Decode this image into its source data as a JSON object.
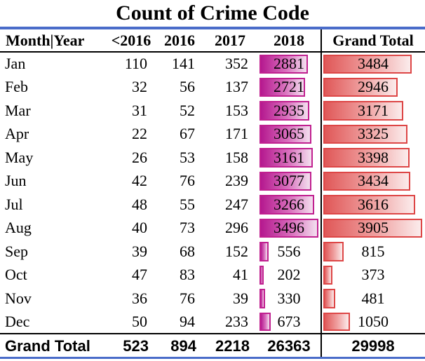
{
  "title": "Count of Crime Code",
  "columns": [
    "Month|Year",
    "<2016",
    "2016",
    "2017",
    "2018",
    "Grand Total"
  ],
  "rows": [
    {
      "month": "Jan",
      "lt2016": "110",
      "y2016": "141",
      "y2017": "352",
      "y2018": "2881",
      "total": "3484"
    },
    {
      "month": "Feb",
      "lt2016": "32",
      "y2016": "56",
      "y2017": "137",
      "y2018": "2721",
      "total": "2946"
    },
    {
      "month": "Mar",
      "lt2016": "31",
      "y2016": "52",
      "y2017": "153",
      "y2018": "2935",
      "total": "3171"
    },
    {
      "month": "Apr",
      "lt2016": "22",
      "y2016": "67",
      "y2017": "171",
      "y2018": "3065",
      "total": "3325"
    },
    {
      "month": "May",
      "lt2016": "26",
      "y2016": "53",
      "y2017": "158",
      "y2018": "3161",
      "total": "3398"
    },
    {
      "month": "Jun",
      "lt2016": "42",
      "y2016": "76",
      "y2017": "239",
      "y2018": "3077",
      "total": "3434"
    },
    {
      "month": "Jul",
      "lt2016": "48",
      "y2016": "55",
      "y2017": "247",
      "y2018": "3266",
      "total": "3616"
    },
    {
      "month": "Aug",
      "lt2016": "40",
      "y2016": "73",
      "y2017": "296",
      "y2018": "3496",
      "total": "3905"
    },
    {
      "month": "Sep",
      "lt2016": "39",
      "y2016": "68",
      "y2017": "152",
      "y2018": "556",
      "total": "815"
    },
    {
      "month": "Oct",
      "lt2016": "47",
      "y2016": "83",
      "y2017": "41",
      "y2018": "202",
      "total": "373"
    },
    {
      "month": "Nov",
      "lt2016": "36",
      "y2016": "76",
      "y2017": "39",
      "y2018": "330",
      "total": "481"
    },
    {
      "month": "Dec",
      "lt2016": "50",
      "y2016": "94",
      "y2017": "233",
      "y2018": "673",
      "total": "1050"
    }
  ],
  "grand_total": {
    "label": "Grand Total",
    "lt2016": "523",
    "y2016": "894",
    "y2017": "2218",
    "y2018": "26363",
    "total": "29998"
  },
  "colors": {
    "accent_rule": "#4a6cc9",
    "databar_2018": "#b5198f",
    "databar_grand_total": "#e05858"
  }
}
